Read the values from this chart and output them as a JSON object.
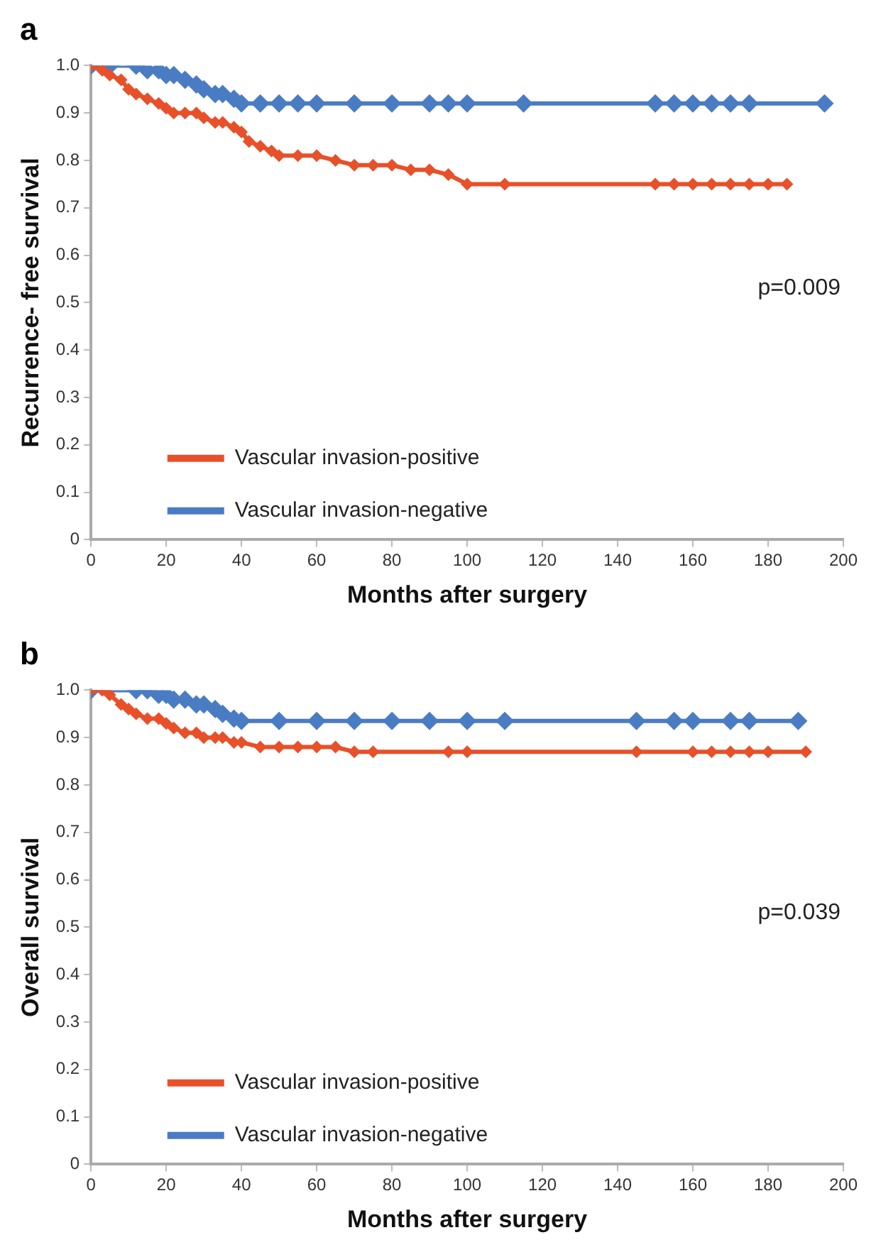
{
  "chart_data": [
    {
      "type": "line",
      "title": "a",
      "xlabel": "Months after surgery",
      "ylabel": "Recurrence- free survival",
      "xlim": [
        0,
        200
      ],
      "xticks": [
        0,
        20,
        40,
        60,
        80,
        100,
        120,
        140,
        160,
        180,
        200
      ],
      "ylim": [
        0,
        1
      ],
      "yticks": [
        0,
        0.1,
        0.2,
        0.3,
        0.4,
        0.5,
        0.6,
        0.7,
        0.8,
        0.9,
        {
          "value": 1,
          "label": "1.0"
        }
      ],
      "grid": false,
      "legend": "bottom left",
      "marker": "diamond",
      "line_style": "solid",
      "annotations": [
        "p=0.009"
      ],
      "series": [
        {
          "name": "Vascular invasion-positive",
          "color": "#e8502a",
          "x": [
            0,
            3,
            5,
            8,
            10,
            12,
            15,
            18,
            20,
            22,
            25,
            28,
            30,
            33,
            35,
            38,
            40,
            42,
            45,
            48,
            50,
            55,
            60,
            65,
            70,
            75,
            80,
            85,
            90,
            95,
            100,
            110,
            150,
            155,
            160,
            165,
            170,
            175,
            180,
            185
          ],
          "values": [
            1.0,
            0.99,
            0.98,
            0.97,
            0.95,
            0.94,
            0.93,
            0.92,
            0.91,
            0.9,
            0.9,
            0.9,
            0.89,
            0.88,
            0.88,
            0.87,
            0.86,
            0.84,
            0.83,
            0.82,
            0.81,
            0.81,
            0.81,
            0.8,
            0.79,
            0.79,
            0.79,
            0.78,
            0.78,
            0.77,
            0.75,
            0.75,
            0.75,
            0.75,
            0.75,
            0.75,
            0.75,
            0.75,
            0.75,
            0.75
          ]
        },
        {
          "name": "Vascular invasion-negative",
          "color": "#4a7cc4",
          "x": [
            0,
            5,
            12,
            15,
            18,
            20,
            22,
            25,
            28,
            30,
            33,
            35,
            38,
            40,
            45,
            50,
            55,
            60,
            70,
            80,
            90,
            95,
            100,
            115,
            150,
            155,
            160,
            165,
            170,
            175,
            195
          ],
          "values": [
            1,
            1,
            1,
            0.99,
            0.99,
            0.98,
            0.98,
            0.97,
            0.96,
            0.95,
            0.94,
            0.94,
            0.93,
            0.92,
            0.92,
            0.92,
            0.92,
            0.92,
            0.92,
            0.92,
            0.92,
            0.92,
            0.92,
            0.92,
            0.92,
            0.92,
            0.92,
            0.92,
            0.92,
            0.92,
            0.92
          ]
        }
      ]
    },
    {
      "type": "line",
      "title": "b",
      "xlabel": "Months after surgery",
      "ylabel": "Overall survival",
      "xlim": [
        0,
        200
      ],
      "xticks": [
        0,
        20,
        40,
        60,
        80,
        100,
        120,
        140,
        160,
        180,
        200
      ],
      "ylim": [
        0,
        1
      ],
      "yticks": [
        0,
        0.1,
        0.2,
        0.3,
        0.4,
        0.5,
        0.6,
        0.7,
        0.8,
        0.9,
        {
          "value": 1,
          "label": "1.0"
        }
      ],
      "grid": false,
      "legend": "bottom left",
      "marker": "diamond",
      "line_style": "solid",
      "annotations": [
        "p=0.039"
      ],
      "series": [
        {
          "name": "Vascular invasion-positive",
          "color": "#e8502a",
          "x": [
            0,
            3,
            5,
            8,
            10,
            12,
            15,
            18,
            20,
            22,
            25,
            28,
            30,
            33,
            35,
            38,
            40,
            45,
            50,
            55,
            60,
            65,
            70,
            75,
            95,
            100,
            145,
            160,
            165,
            170,
            175,
            180,
            190
          ],
          "values": [
            1,
            1,
            0.99,
            0.97,
            0.96,
            0.95,
            0.94,
            0.94,
            0.93,
            0.92,
            0.91,
            0.91,
            0.9,
            0.9,
            0.9,
            0.89,
            0.89,
            0.88,
            0.88,
            0.88,
            0.88,
            0.88,
            0.87,
            0.87,
            0.87,
            0.87,
            0.87,
            0.87,
            0.87,
            0.87,
            0.87,
            0.87,
            0.87
          ]
        },
        {
          "name": "Vascular invasion-negative",
          "color": "#4a7cc4",
          "x": [
            0,
            12,
            15,
            18,
            20,
            22,
            25,
            28,
            30,
            33,
            35,
            38,
            40,
            50,
            60,
            70,
            80,
            90,
            100,
            110,
            145,
            155,
            160,
            170,
            175,
            188
          ],
          "values": [
            1,
            1,
            1,
            0.99,
            0.99,
            0.98,
            0.98,
            0.97,
            0.97,
            0.96,
            0.95,
            0.94,
            0.935,
            0.935,
            0.935,
            0.935,
            0.935,
            0.935,
            0.935,
            0.935,
            0.935,
            0.935,
            0.935,
            0.935,
            0.935,
            0.935
          ]
        }
      ]
    }
  ]
}
